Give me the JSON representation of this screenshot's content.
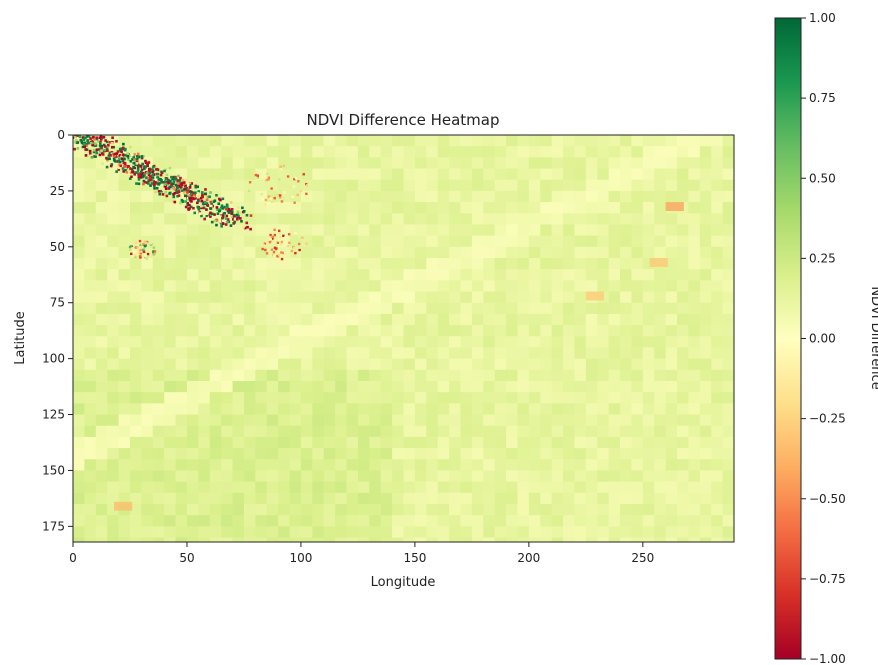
{
  "chart_data": {
    "type": "heatmap",
    "title": "NDVI Difference Heatmap",
    "xlabel": "Longitude",
    "ylabel": "Latitude",
    "x_range": [
      0,
      290
    ],
    "y_range": [
      0,
      182
    ],
    "y_inverted": true,
    "x_ticks": [
      0,
      50,
      100,
      150,
      200,
      250
    ],
    "y_ticks": [
      0,
      25,
      50,
      75,
      100,
      125,
      150,
      175
    ],
    "grid": false,
    "colormap": "RdYlGn",
    "colorbar": {
      "label": "NDVI Difference",
      "range": [
        -1.0,
        1.0
      ],
      "ticks": [
        "1.00",
        "0.75",
        "0.50",
        "0.25",
        "0.00",
        "−0.25",
        "−0.50",
        "−0.75",
        "−1.00"
      ],
      "tick_values": [
        1.0,
        0.75,
        0.5,
        0.25,
        0.0,
        -0.25,
        -0.5,
        -0.75,
        -1.0
      ],
      "stops": [
        "#a50026",
        "#d73027",
        "#f46d43",
        "#fdae61",
        "#fee08b",
        "#ffffbf",
        "#d9ef8b",
        "#a6d96a",
        "#66bd63",
        "#1a9850",
        "#006837"
      ]
    },
    "background_value": 0.12,
    "features": [
      {
        "kind": "diagonal-band",
        "description_free": true,
        "from": [
          2,
          0
        ],
        "to": [
          72,
          38
        ],
        "width": 14,
        "value_range": [
          -1.0,
          1.0
        ]
      },
      {
        "kind": "patch",
        "center": [
          90,
          22
        ],
        "radius": 14,
        "value_range": [
          -0.8,
          0.3
        ]
      },
      {
        "kind": "patch",
        "center": [
          92,
          48
        ],
        "radius": 10,
        "value_range": [
          -0.9,
          0.2
        ]
      },
      {
        "kind": "patch",
        "center": [
          30,
          51
        ],
        "radius": 6,
        "value_range": [
          -0.9,
          0.9
        ]
      },
      {
        "kind": "spot",
        "center": [
          264,
          32
        ],
        "value": -0.45
      },
      {
        "kind": "spot",
        "center": [
          22,
          166
        ],
        "value": -0.35
      },
      {
        "kind": "spot",
        "center": [
          257,
          57
        ],
        "value": -0.3
      },
      {
        "kind": "spot",
        "center": [
          229,
          72
        ],
        "value": -0.3
      },
      {
        "kind": "river",
        "from": [
          0,
          180
        ],
        "to": [
          290,
          30
        ],
        "value": 0.05
      }
    ]
  }
}
